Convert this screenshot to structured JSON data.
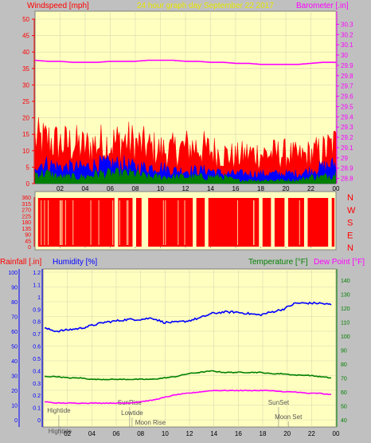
{
  "header": {
    "windspeed_label": "Windspeed [mph]",
    "title": "24 hour graph day   September 22 2017",
    "barometer_label": "Barometer [.in]"
  },
  "colors": {
    "background": "#c0c0c0",
    "plot_bg": "#ffffc0",
    "red": "#ff0000",
    "blue": "#0000ff",
    "green": "#008000",
    "magenta": "#ff00ff",
    "yellow_text": "#e8e800",
    "grid": "#d8d8b0"
  },
  "chart_data": [
    {
      "type": "area",
      "name": "wind-barometer",
      "x_ticks": [
        "02",
        "04",
        "06",
        "08",
        "10",
        "12",
        "14",
        "16",
        "18",
        "20",
        "22",
        "00"
      ],
      "y_left_ticks": [
        "50",
        "45",
        "40",
        "35",
        "30",
        "25",
        "20",
        "15",
        "10",
        "5",
        "0"
      ],
      "y_left_range": [
        0,
        50
      ],
      "y_right_ticks": [
        "30.3",
        "30.2",
        "30.1",
        "30",
        "29.9",
        "29.8",
        "29.7",
        "29.6",
        "29.5",
        "29.4",
        "29.3",
        "29.2",
        "29.1",
        "29",
        "28.9",
        "28.8"
      ],
      "y_right_range": [
        28.75,
        30.35
      ],
      "barometer": [
        29.95,
        29.94,
        29.94,
        29.93,
        29.93,
        29.93,
        29.94,
        29.94,
        29.94,
        29.95,
        29.95,
        29.95,
        29.94,
        29.94,
        29.93,
        29.93,
        29.92,
        29.92,
        29.91,
        29.91,
        29.91,
        29.91,
        29.92,
        29.93,
        29.93
      ],
      "wind_gust": [
        13,
        13,
        12,
        12,
        11,
        12,
        12,
        13,
        12,
        11,
        10,
        10,
        11,
        11,
        10,
        9,
        8,
        9,
        9,
        9,
        9,
        8,
        9,
        10,
        12
      ],
      "wind_avg": [
        6,
        6,
        5,
        5,
        5,
        6,
        6,
        6,
        5,
        5,
        5,
        4,
        4,
        4,
        4,
        3,
        3,
        3,
        3,
        3,
        3,
        3,
        4,
        5,
        6
      ],
      "wind_low": [
        3,
        3,
        2,
        2,
        2,
        3,
        3,
        3,
        3,
        2,
        2,
        2,
        2,
        2,
        2,
        2,
        1,
        1,
        1,
        1,
        1,
        1,
        2,
        2,
        3
      ]
    },
    {
      "type": "bar",
      "name": "wind-direction",
      "x_ticks": [
        "02",
        "04",
        "06",
        "08",
        "10",
        "12",
        "14",
        "16",
        "18",
        "20",
        "22",
        "00"
      ],
      "y_ticks": [
        "360",
        "315",
        "270",
        "225",
        "180",
        "135",
        "90",
        "45",
        "0"
      ],
      "y_range": [
        0,
        360
      ],
      "direction_letters": [
        "N",
        "W",
        "S",
        "E",
        "N"
      ],
      "gaps": [
        0.27,
        0.33,
        0.36,
        0.37,
        0.53,
        0.57,
        0.75,
        0.79,
        0.835,
        0.9,
        0.98
      ]
    },
    {
      "type": "line",
      "name": "rain-humidity-temperature",
      "x_ticks": [
        "02",
        "04",
        "06",
        "08",
        "10",
        "12",
        "14",
        "16",
        "18",
        "20",
        "22",
        "00"
      ],
      "rain_ticks": [
        "1.2",
        "1.1",
        "1",
        "0.9",
        "0.8",
        "0.7",
        "0.6",
        "0.5",
        "0.4",
        "0.3",
        "0.2",
        "0.1",
        "0"
      ],
      "rain_range": [
        0,
        1.2
      ],
      "humidity_ticks": [
        "100",
        "90",
        "80",
        "70",
        "60",
        "50",
        "40",
        "30",
        "20",
        "10",
        "0"
      ],
      "humidity_range": [
        0,
        100
      ],
      "temp_ticks": [
        "140",
        "130",
        "120",
        "110",
        "100",
        "90",
        "80",
        "70",
        "60",
        "50",
        "40"
      ],
      "temp_range": [
        40,
        150
      ],
      "humidity": [
        62,
        60,
        61,
        62,
        64,
        66,
        67,
        68,
        68,
        69,
        66,
        66,
        67,
        69,
        72,
        73,
        73,
        72,
        71,
        73,
        75,
        79,
        79,
        79,
        78
      ],
      "temperature": [
        71,
        71,
        70,
        70,
        69,
        69,
        69,
        69,
        69,
        69,
        70,
        71,
        73,
        74,
        75,
        74,
        74,
        74,
        74,
        73,
        73,
        72,
        72,
        71,
        70
      ],
      "dewpoint": [
        53,
        52,
        52,
        52,
        52,
        52,
        52,
        52,
        53,
        54,
        56,
        58,
        59,
        60,
        61,
        61,
        61,
        61,
        61,
        61,
        60,
        60,
        59,
        59,
        58
      ],
      "rainfall_label": "Rainfall [.in]",
      "humidity_label": "Humidity [%]",
      "temperature_label": "Temperature [°F]",
      "dewpoint_label": "Dew Point [°F]",
      "events": [
        {
          "label": "Hightide",
          "hour": 1.3
        },
        {
          "label": "SunRise",
          "hour": 7.1
        },
        {
          "label": "Lowtide",
          "hour": 7.3
        },
        {
          "label": "Moon Rise",
          "hour": 8.8
        },
        {
          "label": "SunSet",
          "hour": 19.3
        },
        {
          "label": "Moon Set",
          "hour": 20.1
        },
        {
          "label": "Hightide",
          "hour": 1.4
        }
      ]
    }
  ]
}
